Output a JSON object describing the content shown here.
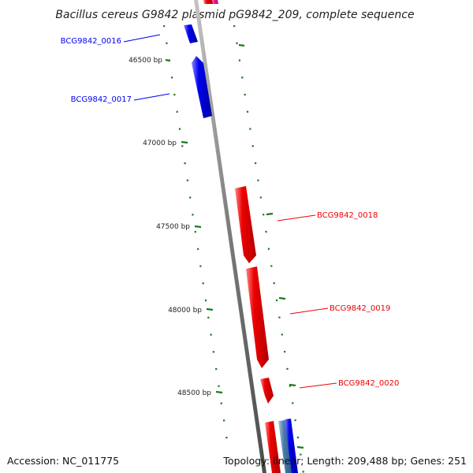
{
  "title": "Bacillus cereus G9842 plasmid pG9842_209, complete sequence",
  "footer": {
    "accession": "Accession: NC_011775",
    "summary": "Topology: linear; Length: 209,488 bp; Genes: 251"
  },
  "colors": {
    "backbone": "#808080",
    "ticks": "#1a7a1a",
    "forward_gene": "#0000ee",
    "reverse_gene": "#ee0000",
    "other_gene_pink": "#e8178a",
    "other_gene_steel": "#4a7aa8"
  },
  "bp_markers": [
    "46500 bp",
    "47000 bp",
    "47500 bp",
    "48000 bp",
    "48500 bp"
  ],
  "genes": [
    {
      "name": "BCG9842_0016",
      "strand": "forward",
      "color": "#0000ee"
    },
    {
      "name": "BCG9842_0017",
      "strand": "forward",
      "color": "#0000ee"
    },
    {
      "name": "BCG9842_0018",
      "strand": "reverse",
      "color": "#ee0000"
    },
    {
      "name": "BCG9842_0019",
      "strand": "reverse",
      "color": "#ee0000"
    },
    {
      "name": "BCG9842_0020",
      "strand": "reverse",
      "color": "#ee0000"
    }
  ]
}
